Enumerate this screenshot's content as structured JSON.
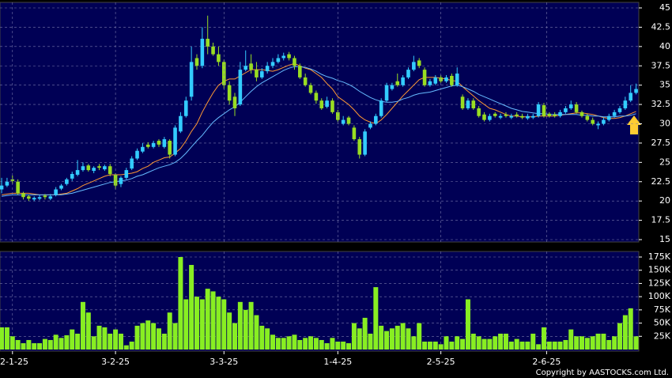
{
  "chart_data": [
    {
      "type": "candlestick",
      "open": [
        21.5,
        22,
        22.8,
        22.5,
        21,
        20.6,
        20.2,
        20.3,
        20.7,
        20.3,
        20.8,
        21.6,
        22.2,
        22.9,
        23.4,
        24,
        24.6,
        23.9,
        24.5,
        24.1,
        24.5,
        23.4,
        22.2,
        23,
        24.2,
        25.5,
        26.4,
        27.3,
        27,
        27.8,
        27,
        27.8,
        26,
        29,
        31,
        33.5,
        38.5,
        37.5,
        41,
        40,
        39,
        38,
        35,
        33.5,
        32.5,
        37,
        37.8,
        37,
        36,
        36.8,
        37.5,
        38,
        38.5,
        39,
        38.5,
        37.5,
        36,
        35,
        34,
        33,
        32.2,
        33,
        31.5,
        30,
        30.8,
        29.5,
        28,
        26,
        29.5,
        30,
        31,
        33,
        34.5,
        35.5,
        35,
        36,
        37,
        38.2,
        37,
        35,
        35.2,
        36,
        35.5,
        36.2,
        35,
        33.5,
        32,
        33,
        32,
        31.2,
        30.5,
        31.3,
        30.8,
        31.2,
        30.8,
        31.2,
        31,
        30.7,
        30.8,
        31,
        32.4,
        31.3,
        31.2,
        31,
        31.5,
        32,
        32.5,
        31.5,
        31,
        30.5,
        29.8,
        30,
        30.5,
        31,
        31.5,
        32,
        33,
        34
      ],
      "high": [
        23,
        23,
        23.3,
        22.8,
        21.2,
        20.8,
        20.6,
        20.8,
        20.9,
        20.9,
        21.8,
        22.2,
        23,
        23.8,
        25.3,
        25,
        24.8,
        24.5,
        24.8,
        24.7,
        24.8,
        23.6,
        23.2,
        24.3,
        25.8,
        26.8,
        27.5,
        27.6,
        27.8,
        28,
        28.3,
        28,
        29.8,
        31.5,
        33.5,
        40,
        39,
        42.5,
        44,
        40.5,
        40,
        38.3,
        35.5,
        34,
        38,
        39.5,
        39,
        38,
        37.2,
        38,
        38.5,
        39,
        39.2,
        39.3,
        38.8,
        37.8,
        36.5,
        35.3,
        34.3,
        33.3,
        33.5,
        33.3,
        31.8,
        31,
        31,
        29.8,
        28.3,
        29.3,
        30.3,
        31.3,
        33.3,
        35.3,
        35.3,
        36.5,
        36.3,
        37.3,
        38.8,
        38.5,
        37.3,
        35.8,
        36.3,
        36.3,
        36.3,
        36.5,
        37.3,
        33.8,
        33.3,
        33.3,
        32.3,
        31.5,
        31.3,
        31.5,
        31.3,
        31.5,
        31.3,
        31.5,
        31.3,
        31.3,
        31.3,
        32.8,
        32.7,
        31.5,
        31.5,
        31.8,
        32.3,
        33,
        32.8,
        31.7,
        31.3,
        30.8,
        30.3,
        30.8,
        31.3,
        31.8,
        32.3,
        33.5,
        35,
        35.2
      ],
      "low": [
        21,
        21.8,
        22.2,
        20.8,
        20.2,
        20,
        20,
        20.1,
        20.2,
        20.1,
        20.6,
        21.4,
        22,
        22.6,
        23.2,
        23.8,
        23.8,
        23.6,
        24,
        23.9,
        23.2,
        21.5,
        21.8,
        22.8,
        24,
        25.3,
        26.2,
        26.8,
        26.8,
        27,
        26.8,
        25.5,
        25.8,
        28.8,
        30.8,
        33,
        37,
        37.2,
        39,
        38.8,
        37.5,
        34.5,
        32.5,
        31,
        32.3,
        36.8,
        36.5,
        35.5,
        35.8,
        36.5,
        37.2,
        37.8,
        38.2,
        38.2,
        37,
        35.8,
        34.8,
        33.8,
        32.6,
        31.8,
        32,
        31.3,
        30.2,
        29.8,
        29.8,
        27.8,
        25.5,
        25.8,
        29.3,
        29.8,
        30.8,
        32.8,
        34.3,
        34.8,
        34.8,
        35.8,
        36.8,
        37.2,
        34.8,
        34.8,
        35,
        35.3,
        35.3,
        34.8,
        34.8,
        31.8,
        31.8,
        31.8,
        30.8,
        30.3,
        30.3,
        30.8,
        30.6,
        30.8,
        30.6,
        30.8,
        30.6,
        30.5,
        30.6,
        30.8,
        30.8,
        30.8,
        30.8,
        30.8,
        31.3,
        31.8,
        31.3,
        30.8,
        30.3,
        29.8,
        29.3,
        29.8,
        30.3,
        30.8,
        31.3,
        31.8,
        32.8,
        33.8
      ],
      "close": [
        22,
        22.5,
        22.6,
        21,
        20.5,
        20.3,
        20.4,
        20.5,
        20.5,
        20.6,
        21.5,
        22,
        22.8,
        23.5,
        24,
        24.5,
        24,
        24.3,
        24.3,
        24.5,
        23.5,
        22,
        23,
        24,
        25.5,
        26.5,
        27,
        27,
        27.5,
        27.3,
        28,
        26,
        29.5,
        31,
        33,
        38,
        37.5,
        41,
        40,
        39,
        38,
        35,
        33,
        32,
        37,
        37.5,
        37,
        36,
        36.8,
        37.5,
        38,
        38.5,
        38.8,
        38.5,
        37.5,
        36,
        35,
        34,
        33,
        32,
        33,
        31.5,
        30.5,
        30.5,
        30,
        28,
        26,
        29,
        30,
        31,
        33,
        35,
        35,
        35,
        36,
        37,
        38,
        37.5,
        35,
        35.5,
        36,
        35.5,
        36,
        35,
        36.5,
        32,
        33,
        32,
        31,
        30.5,
        31,
        31,
        31,
        31,
        31,
        31,
        30.8,
        31,
        31,
        32.5,
        31,
        31,
        31,
        31.5,
        32,
        32.5,
        31.5,
        31,
        30.5,
        30,
        30,
        30.5,
        31,
        31.5,
        32,
        33,
        34,
        34.5
      ],
      "up_color": "#33ccff",
      "down_color": "#99dd22",
      "series": [
        {
          "color": "#ff9933",
          "values": [
            20.8,
            20.9,
            21,
            21,
            21,
            21,
            20.9,
            20.8,
            20.8,
            20.8,
            20.8,
            20.9,
            21,
            21.3,
            21.6,
            22,
            22.3,
            22.6,
            22.9,
            23.2,
            23.4,
            23.4,
            23.4,
            23.5,
            23.6,
            23.8,
            24.2,
            24.5,
            25,
            25.3,
            25.6,
            25.7,
            26.2,
            26.8,
            27.8,
            29,
            30,
            31.5,
            32.8,
            34,
            35,
            35.5,
            35.8,
            35.8,
            36.2,
            36.6,
            37,
            37,
            37,
            36.9,
            36.8,
            37,
            37.3,
            37.6,
            37.8,
            37.5,
            37.2,
            37,
            36.5,
            36,
            35.2,
            34.5,
            33.5,
            33,
            32.5,
            31.8,
            31,
            30.5,
            30.2,
            30,
            30.5,
            31.2,
            32,
            32.8,
            33.6,
            34.3,
            35,
            35.7,
            36,
            36,
            36,
            35.9,
            35.8,
            35.6,
            35.5,
            34.8,
            34.2,
            33.6,
            33,
            32.5,
            32,
            31.8,
            31.5,
            31.2,
            31,
            31,
            30.9,
            30.9,
            30.9,
            31,
            31,
            31,
            31,
            31.1,
            31.2,
            31.3,
            31.4,
            31.4,
            31.3,
            31.2,
            31,
            30.8,
            30.7,
            30.7,
            30.8,
            31,
            31.3,
            31.6
          ]
        },
        {
          "color": "#66bbff",
          "values": [
            20.6,
            20.7,
            20.8,
            20.8,
            20.8,
            20.8,
            20.8,
            20.8,
            20.8,
            20.8,
            20.8,
            20.8,
            20.9,
            21,
            21.2,
            21.4,
            21.6,
            21.8,
            22,
            22.2,
            22.4,
            22.5,
            22.6,
            22.7,
            22.9,
            23.2,
            23.4,
            23.7,
            24,
            24.3,
            24.5,
            24.7,
            25,
            25.5,
            26.2,
            27,
            27.8,
            28.5,
            29.4,
            30.2,
            30.8,
            31.3,
            31.8,
            32.2,
            32.8,
            33.5,
            34.2,
            34.8,
            35.3,
            35.7,
            36.1,
            36.5,
            36.9,
            37.2,
            37.4,
            37.4,
            37.3,
            37.1,
            36.8,
            36.4,
            36.1,
            35.9,
            35.6,
            35.4,
            35.1,
            34.7,
            34.2,
            33.8,
            33.4,
            33.1,
            32.9,
            32.8,
            32.8,
            32.9,
            33.2,
            33.4,
            33.7,
            33.9,
            34,
            34.1,
            34.3,
            34.5,
            34.7,
            34.9,
            35,
            34.8,
            34.5,
            34.2,
            33.8,
            33.5,
            33.2,
            32.9,
            32.6,
            32.3,
            32,
            31.8,
            31.6,
            31.5,
            31.4,
            31.3,
            31.3,
            31.2,
            31.2,
            31.2,
            31.2,
            31.2,
            31.2,
            31.1,
            31.1,
            31,
            31,
            30.9,
            30.9,
            30.9,
            31,
            31,
            31.1,
            31.3
          ]
        }
      ],
      "xlim": [
        -0.3,
        117.5
      ],
      "ylim": [
        15,
        45
      ],
      "yticks": [
        15,
        17.5,
        20,
        22.5,
        25,
        27.5,
        30,
        32.5,
        35,
        37.5,
        40,
        42.5,
        45
      ],
      "grid": true
    },
    {
      "type": "bar",
      "color": "#88ee22",
      "values": [
        42000,
        42000,
        25000,
        18000,
        12000,
        18000,
        12000,
        12000,
        20000,
        18000,
        28000,
        22000,
        27000,
        38000,
        30000,
        90000,
        70000,
        25000,
        45000,
        42000,
        30000,
        38000,
        30000,
        8000,
        15000,
        45000,
        50000,
        55000,
        50000,
        40000,
        30000,
        70000,
        50000,
        175000,
        95000,
        160000,
        100000,
        95000,
        115000,
        110000,
        100000,
        95000,
        70000,
        50000,
        90000,
        75000,
        90000,
        65000,
        45000,
        40000,
        28000,
        22000,
        22000,
        25000,
        28000,
        18000,
        22000,
        25000,
        22000,
        18000,
        12000,
        22000,
        15000,
        15000,
        12000,
        50000,
        40000,
        60000,
        30000,
        118000,
        45000,
        35000,
        40000,
        45000,
        50000,
        40000,
        25000,
        50000,
        15000,
        15000,
        15000,
        10000,
        25000,
        15000,
        25000,
        20000,
        95000,
        30000,
        25000,
        20000,
        20000,
        25000,
        30000,
        30000,
        15000,
        20000,
        15000,
        15000,
        30000,
        10000,
        42000,
        15000,
        15000,
        15000,
        18000,
        38000,
        25000,
        25000,
        22000,
        25000,
        30000,
        30000,
        18000,
        25000,
        50000,
        65000,
        78000,
        25000
      ],
      "xlim": [
        -0.3,
        117.5
      ],
      "ylim": [
        0,
        175000
      ],
      "yticks": [
        {
          "value": 25000,
          "label": "25K"
        },
        {
          "value": 50000,
          "label": "50K"
        },
        {
          "value": 75000,
          "label": "75K"
        },
        {
          "value": 100000,
          "label": "100K"
        },
        {
          "value": 125000,
          "label": "125K"
        },
        {
          "value": 150000,
          "label": "150K"
        },
        {
          "value": 175000,
          "label": "175K"
        }
      ],
      "xticks": [
        {
          "value": 2,
          "label": "2-1-25"
        },
        {
          "value": 21,
          "label": "3-2-25"
        },
        {
          "value": 41,
          "label": "3-3-25"
        },
        {
          "value": 62,
          "label": "1-4-25"
        },
        {
          "value": 81,
          "label": "2-5-25"
        },
        {
          "value": 100.5,
          "label": "2-6-25"
        }
      ],
      "grid": true,
      "source": "Copyright by AASTOCKS.com Ltd."
    }
  ]
}
